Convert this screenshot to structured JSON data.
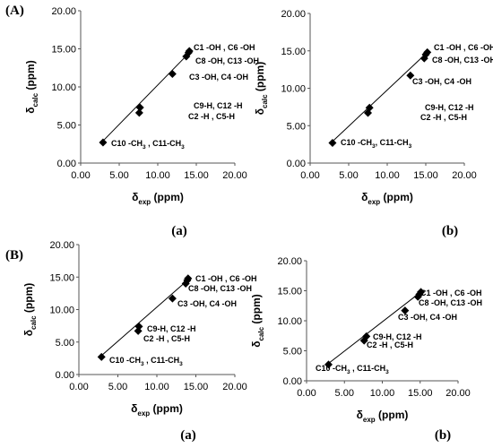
{
  "panels": [
    {
      "label": "(A)"
    },
    {
      "label": "(B)"
    }
  ],
  "chart_data": [
    {
      "type": "scatter",
      "caption": "(a)",
      "xlabel_main": "δ",
      "xlabel_sub": "exp",
      "xlabel_unit": " (ppm)",
      "ylabel_main": "δ",
      "ylabel_sub": "calc",
      "ylabel_unit": " (ppm)",
      "xlim": [
        0,
        20
      ],
      "ylim": [
        0,
        20
      ],
      "xticks": [
        "0.00",
        "5.00",
        "10.00",
        "15.00",
        "20.00"
      ],
      "yticks": [
        "0.00",
        "5.00",
        "10.00",
        "15.00",
        "20.00"
      ],
      "grid": false,
      "series": [
        {
          "marker": "diamond",
          "color": "#000000",
          "x": [
            2.9,
            7.6,
            7.7,
            11.9,
            13.7,
            14.0,
            14.1
          ],
          "y": [
            2.7,
            6.6,
            7.3,
            11.7,
            14.0,
            14.5,
            14.7
          ]
        }
      ],
      "trendline": {
        "x": [
          2.7,
          14.3
        ],
        "y": [
          2.7,
          14.7
        ]
      },
      "annotations": [
        {
          "parts": [
            [
              "C1 -OH , C6 -OH",
              false
            ]
          ]
        },
        {
          "parts": [
            [
              "C8 -OH, C13 -OH",
              false
            ]
          ]
        },
        {
          "parts": [
            [
              "C3 -OH, C4 -OH",
              false
            ]
          ]
        },
        {
          "parts": [
            [
              "C9-H, C12 -H",
              false
            ]
          ]
        },
        {
          "parts": [
            [
              "C2 -H , C5-H",
              false
            ]
          ]
        },
        {
          "parts": [
            [
              "C10 -CH",
              false
            ],
            [
              "3",
              true
            ],
            [
              " , C11-CH",
              false
            ],
            [
              "3",
              true
            ]
          ]
        }
      ]
    },
    {
      "type": "scatter",
      "caption": "(b)",
      "xlabel_main": "δ",
      "xlabel_sub": "exp",
      "xlabel_unit": " (ppm)",
      "ylabel_main": "δ",
      "ylabel_sub": "calc",
      "ylabel_unit": " (ppm)",
      "xlim": [
        0,
        20
      ],
      "ylim": [
        0,
        20
      ],
      "xticks": [
        "0.00",
        "5.00",
        "10.00",
        "15.00",
        "20.00"
      ],
      "yticks": [
        "0.00",
        "5.00",
        "10.00",
        "15.00",
        "20.00"
      ],
      "grid": false,
      "series": [
        {
          "marker": "diamond",
          "color": "#000000",
          "x": [
            2.9,
            7.5,
            7.7,
            13.0,
            14.8,
            15.0,
            15.2
          ],
          "y": [
            2.7,
            6.7,
            7.4,
            11.7,
            14.0,
            14.5,
            14.8
          ]
        }
      ],
      "trendline": {
        "x": [
          2.7,
          15.3
        ],
        "y": [
          2.7,
          14.9
        ]
      },
      "annotations": [
        {
          "parts": [
            [
              "C1 -OH , C6 -OH",
              false
            ]
          ]
        },
        {
          "parts": [
            [
              "C8 -OH, C13 -OH",
              false
            ]
          ]
        },
        {
          "parts": [
            [
              "C3 -OH, C4 -OH",
              false
            ]
          ]
        },
        {
          "parts": [
            [
              "C9-H, C12 -H",
              false
            ]
          ]
        },
        {
          "parts": [
            [
              "C2 -H , C5-H",
              false
            ]
          ]
        },
        {
          "parts": [
            [
              "C10 -CH",
              false
            ],
            [
              "3",
              true
            ],
            [
              ", C11-CH",
              false
            ],
            [
              "3",
              true
            ]
          ]
        }
      ]
    },
    {
      "type": "scatter",
      "caption": "(a)",
      "xlabel_main": "δ",
      "xlabel_sub": "exp",
      "xlabel_unit": " (ppm)",
      "ylabel_main": "δ",
      "ylabel_sub": "calc",
      "ylabel_unit": " (ppm)",
      "xlim": [
        0,
        20
      ],
      "ylim": [
        0,
        20
      ],
      "xticks": [
        "0.00",
        "5.00",
        "10.00",
        "15.00",
        "20.00"
      ],
      "yticks": [
        "0.00",
        "5.00",
        "10.00",
        "15.00",
        "20.00"
      ],
      "grid": false,
      "series": [
        {
          "marker": "diamond",
          "color": "#000000",
          "x": [
            2.9,
            7.6,
            7.7,
            12.0,
            13.7,
            13.9,
            14.0
          ],
          "y": [
            2.7,
            6.7,
            7.4,
            11.7,
            14.0,
            14.5,
            14.8
          ]
        }
      ],
      "trendline": {
        "x": [
          2.7,
          14.2
        ],
        "y": [
          2.7,
          14.8
        ]
      },
      "annotations": [
        {
          "parts": [
            [
              "C1 -OH , C6 -OH",
              false
            ]
          ]
        },
        {
          "parts": [
            [
              "C8 -OH, C13 -OH",
              false
            ]
          ]
        },
        {
          "parts": [
            [
              "C3 -OH, C4 -OH",
              false
            ]
          ]
        },
        {
          "parts": [
            [
              "C9-H, C12 -H",
              false
            ]
          ]
        },
        {
          "parts": [
            [
              "C2 -H , C5-H",
              false
            ]
          ]
        },
        {
          "parts": [
            [
              "C10 -CH",
              false
            ],
            [
              "3",
              true
            ],
            [
              " , C11-CH",
              false
            ],
            [
              "3",
              true
            ]
          ]
        }
      ]
    },
    {
      "type": "scatter",
      "caption": "(b)",
      "xlabel_main": "δ",
      "xlabel_sub": "exp",
      "xlabel_unit": " (ppm)",
      "ylabel_main": "δ",
      "ylabel_sub": "calc",
      "ylabel_unit": " (ppm)",
      "xlim": [
        0,
        20
      ],
      "ylim": [
        0,
        20
      ],
      "xticks": [
        "0.00",
        "5.00",
        "10.00",
        "15.00",
        "20.00"
      ],
      "yticks": [
        "0.00",
        "5.00",
        "10.00",
        "15.00",
        "20.00"
      ],
      "grid": false,
      "series": [
        {
          "marker": "diamond",
          "color": "#000000",
          "x": [
            2.9,
            7.6,
            7.9,
            13.0,
            14.7,
            14.9,
            15.1
          ],
          "y": [
            2.7,
            6.7,
            7.4,
            11.7,
            14.0,
            14.4,
            14.8
          ]
        }
      ],
      "trendline": {
        "x": [
          2.7,
          15.2
        ],
        "y": [
          2.7,
          14.9
        ]
      },
      "annotations": [
        {
          "parts": [
            [
              "C1 -OH , C6 -OH",
              false
            ]
          ]
        },
        {
          "parts": [
            [
              "C8 -OH, C13 -OH",
              false
            ]
          ]
        },
        {
          "parts": [
            [
              "C3 -OH, C4 -OH",
              false
            ]
          ]
        },
        {
          "parts": [
            [
              "C9-H, C12 -H",
              false
            ]
          ]
        },
        {
          "parts": [
            [
              "C2 -H , C5-H",
              false
            ]
          ]
        },
        {
          "parts": [
            [
              "C10 -CH",
              false
            ],
            [
              "3",
              true
            ],
            [
              " , C11-CH",
              false
            ],
            [
              "3",
              true
            ]
          ]
        }
      ]
    }
  ]
}
